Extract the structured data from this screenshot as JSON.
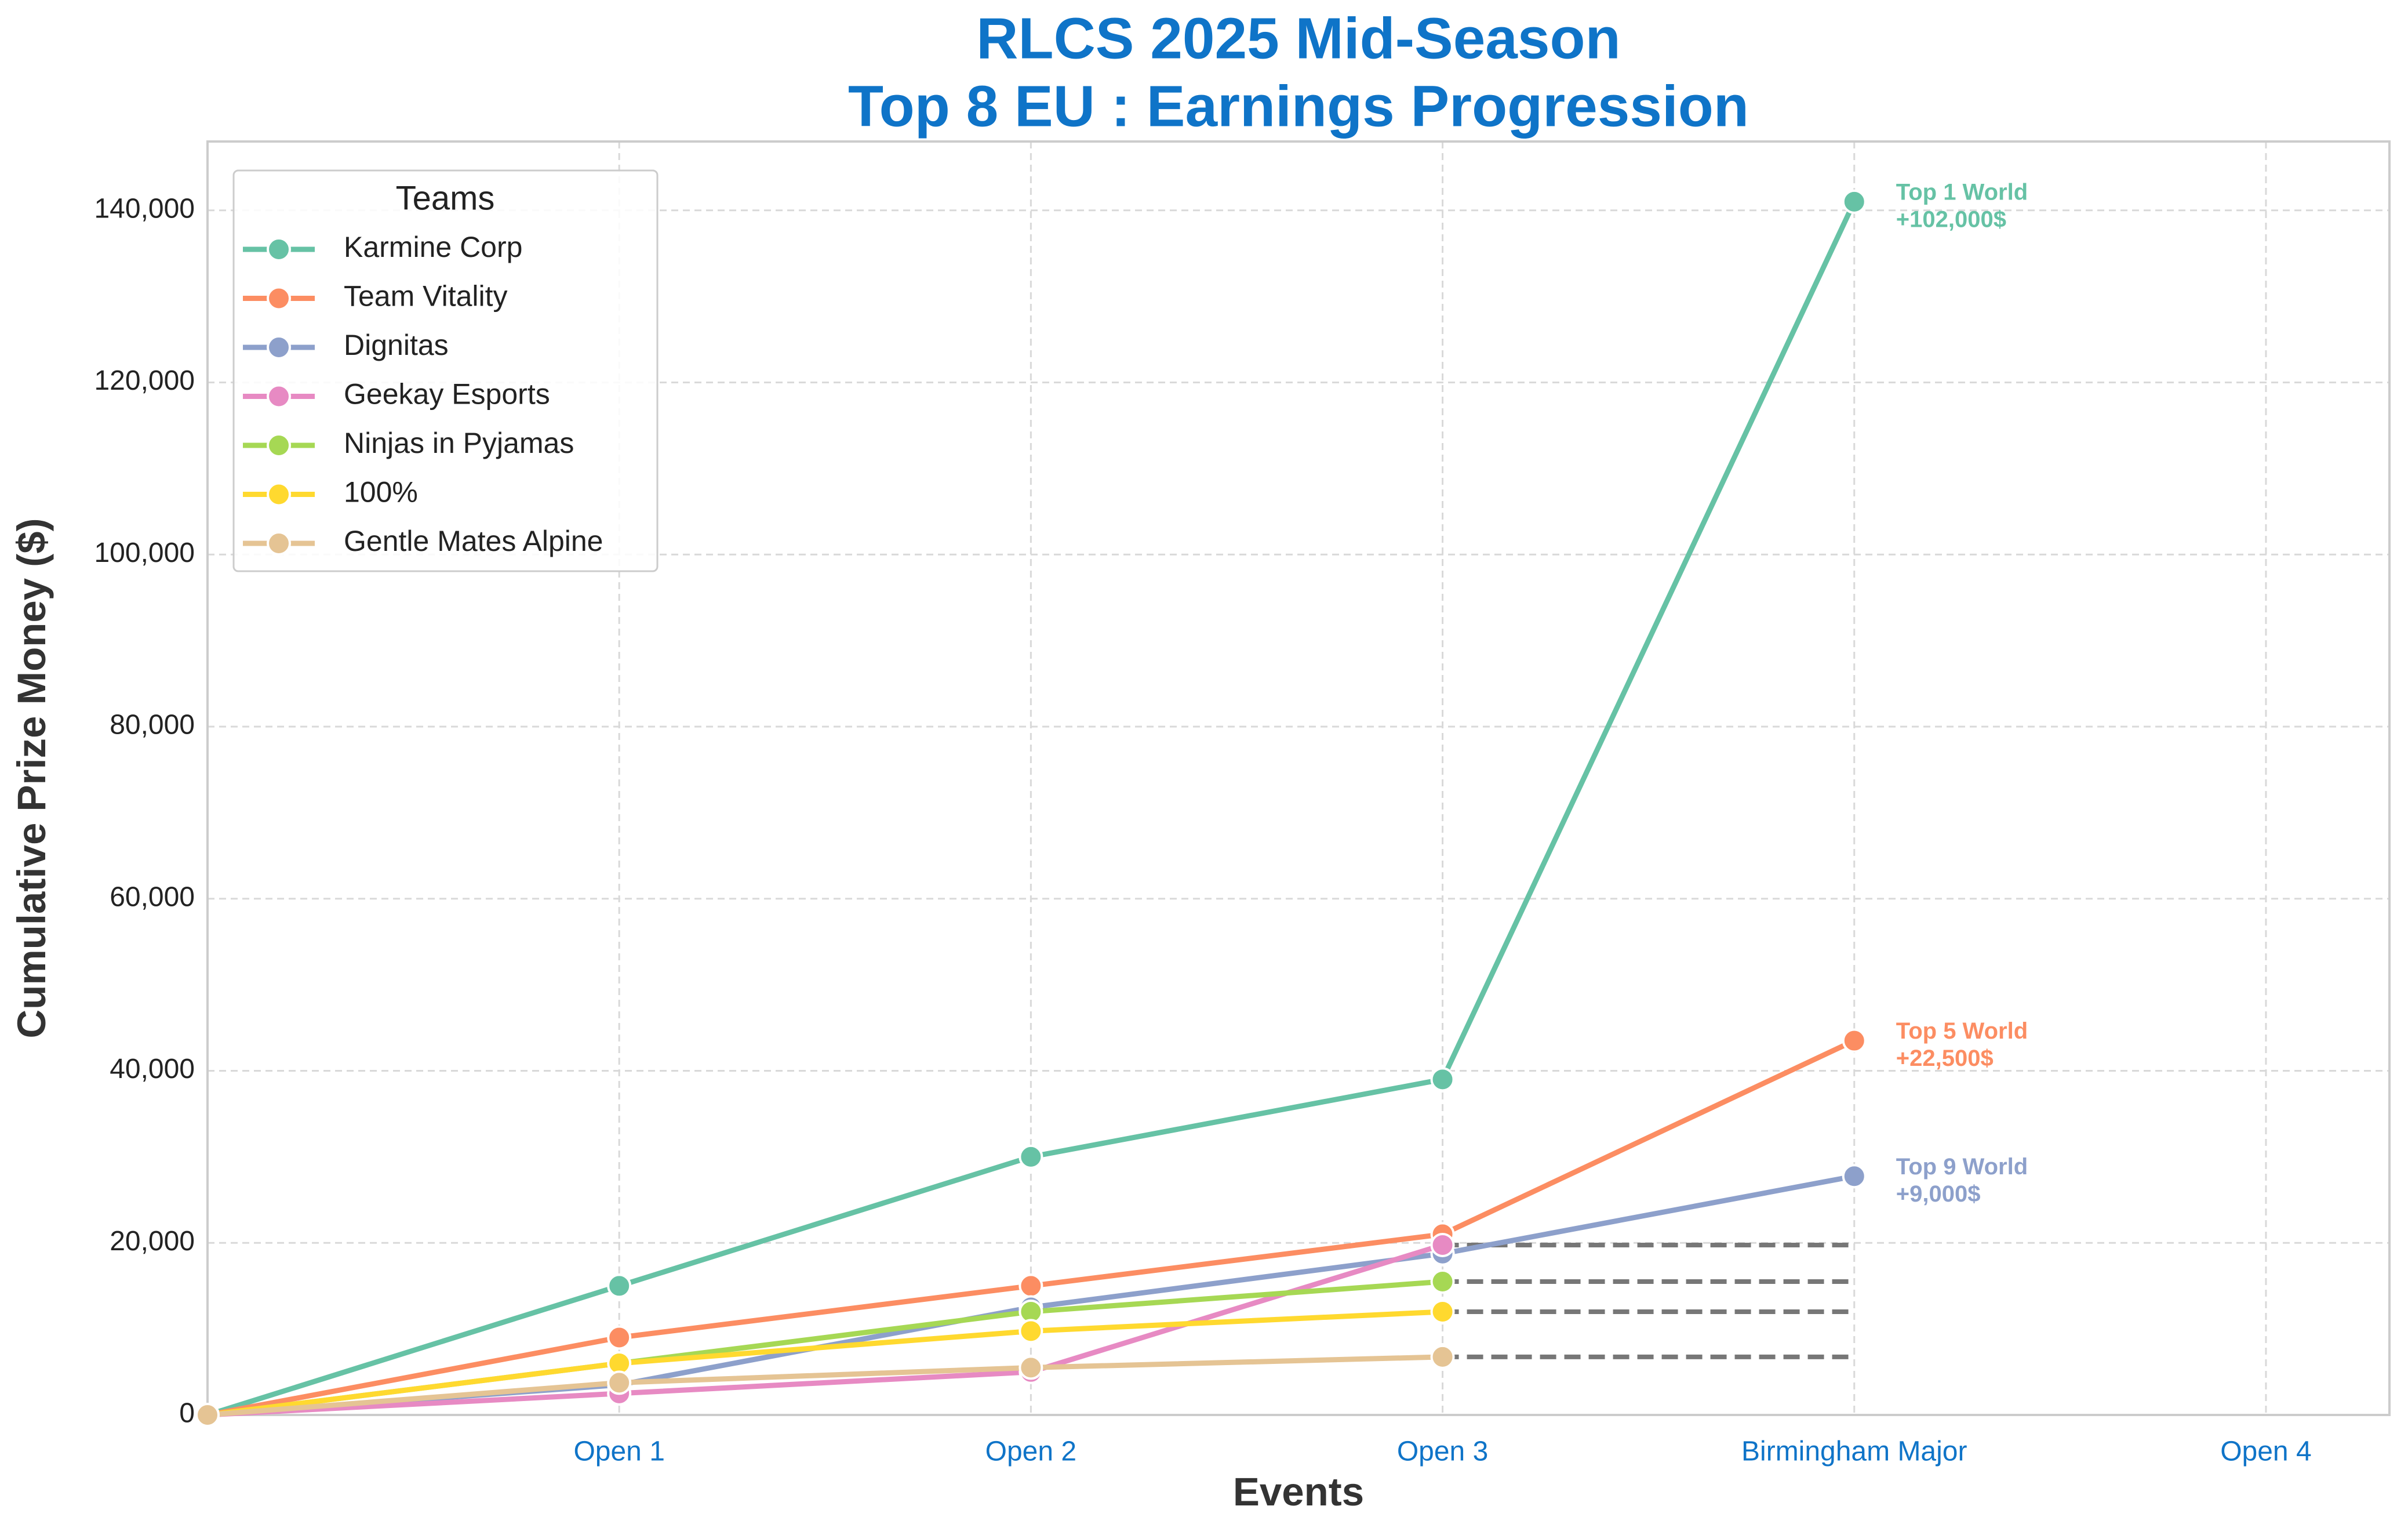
{
  "chart_data": {
    "type": "line",
    "title": [
      "RLCS 2025 Mid-Season",
      "Top 8 EU : Earnings Progression"
    ],
    "xlabel": "Events",
    "ylabel": "Cumulative Prize Money ($)",
    "categories": [
      null,
      "Open 1",
      "Open 2",
      "Open 3",
      "Birmingham Major",
      "Open 4"
    ],
    "xlim": [
      0,
      5.3
    ],
    "ylim": [
      0,
      148000
    ],
    "yticks": [
      0,
      {
        "value": 20000,
        "label": "20,000"
      },
      {
        "value": 40000,
        "label": "40,000"
      },
      {
        "value": 60000,
        "label": "60,000"
      },
      {
        "value": 80000,
        "label": "80,000"
      },
      {
        "value": 100000,
        "label": "100,000"
      },
      {
        "value": 120000,
        "label": "120,000"
      },
      {
        "value": 140000,
        "label": "140,000"
      }
    ],
    "grid": true,
    "legend_title": "Teams",
    "legend": "upper left",
    "series": [
      {
        "name": "Karmine Corp",
        "color": "#66c2a5",
        "values": [
          0,
          15000,
          30000,
          39000,
          141000,
          null
        ],
        "annotation": [
          "Top 1 World",
          "+102,000$"
        ]
      },
      {
        "name": "Team Vitality",
        "color": "#fc8d62",
        "values": [
          0,
          9000,
          15000,
          21000,
          43500,
          null
        ],
        "annotation": [
          "Top 5 World",
          "+22,500$"
        ]
      },
      {
        "name": "Dignitas",
        "color": "#8da0cb",
        "values": [
          0,
          3500,
          12500,
          18750,
          27750,
          null
        ],
        "annotation": [
          "Top 9 World",
          "+9,000$"
        ]
      },
      {
        "name": "Geekay Esports",
        "color": "#e78ac3",
        "values": [
          0,
          2500,
          5000,
          19750,
          null,
          null
        ]
      },
      {
        "name": "Ninjas in Pyjamas",
        "color": "#a6d854",
        "values": [
          0,
          6000,
          12000,
          15500,
          null,
          null
        ]
      },
      {
        "name": "100%",
        "color": "#ffd92f",
        "values": [
          0,
          6000,
          9750,
          12000,
          null,
          null
        ]
      },
      {
        "name": "Gentle Mates Alpine",
        "color": "#e5c494",
        "values": [
          0,
          3750,
          5500,
          6750,
          null,
          null
        ]
      }
    ],
    "flat_lines": {
      "color": "#777777",
      "from": 3,
      "to": 4,
      "values": [
        19750,
        15500,
        12000,
        6750
      ]
    }
  }
}
